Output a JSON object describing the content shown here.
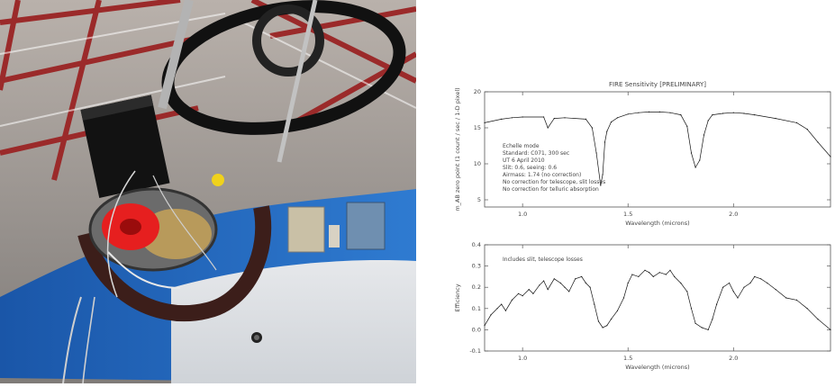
{
  "photo": {
    "subject": "Telescope instrument photo"
  },
  "chart_data": [
    {
      "type": "line",
      "title": "FIRE Sensitivity [PRELIMINARY]",
      "xlabel": "Wavelength (microns)",
      "ylabel": "m_AB zero point (1 count / sec / 1-D pixel)",
      "xlim": [
        0.82,
        2.46
      ],
      "ylim": [
        4,
        20
      ],
      "xticks": [
        "1.0",
        "1.5",
        "2.0"
      ],
      "yticks": [
        "5",
        "10",
        "15",
        "20"
      ],
      "annotations": [
        "Echelle mode",
        "Standard: C071, 300 sec",
        "UT 6 April 2010",
        "Slit: 0.6, seeing: 0.6",
        "Airmass: 1.74 (no correction)",
        "No correction for telescope, slit losses",
        "No correction for telluric absorption"
      ],
      "series": [
        {
          "x": [
            0.82,
            0.9,
            0.95,
            1.0,
            1.1,
            1.12,
            1.15,
            1.2,
            1.3,
            1.33,
            1.35,
            1.37,
            1.38,
            1.39,
            1.4,
            1.42,
            1.45,
            1.5,
            1.55,
            1.6,
            1.65,
            1.7,
            1.75,
            1.78,
            1.8,
            1.82,
            1.84,
            1.86,
            1.88,
            1.9,
            1.95,
            2.0,
            2.05,
            2.1,
            2.2,
            2.3,
            2.35,
            2.4,
            2.46
          ],
          "y": [
            15.7,
            16.2,
            16.4,
            16.5,
            16.5,
            15.0,
            16.3,
            16.4,
            16.2,
            15.0,
            11.5,
            7.0,
            8.5,
            13.0,
            14.5,
            15.8,
            16.4,
            16.9,
            17.1,
            17.2,
            17.2,
            17.1,
            16.8,
            15.2,
            11.5,
            9.5,
            10.5,
            14.0,
            16.0,
            16.8,
            17.0,
            17.1,
            17.0,
            16.8,
            16.3,
            15.7,
            14.8,
            13.0,
            11.0
          ]
        }
      ]
    },
    {
      "type": "line",
      "title": "",
      "xlabel": "Wavelength (microns)",
      "ylabel": "Efficiency",
      "xlim": [
        0.82,
        2.46
      ],
      "ylim": [
        -0.1,
        0.4
      ],
      "xticks": [
        "1.0",
        "1.5",
        "2.0"
      ],
      "yticks": [
        "-0.1",
        "0.0",
        "0.1",
        "0.2",
        "0.3",
        "0.4"
      ],
      "annotations": [
        "Includes slit, telescope losses"
      ],
      "series": [
        {
          "x": [
            0.82,
            0.85,
            0.88,
            0.9,
            0.92,
            0.95,
            0.98,
            1.0,
            1.03,
            1.05,
            1.08,
            1.1,
            1.12,
            1.15,
            1.18,
            1.2,
            1.22,
            1.25,
            1.28,
            1.3,
            1.32,
            1.34,
            1.36,
            1.38,
            1.4,
            1.42,
            1.45,
            1.48,
            1.5,
            1.52,
            1.55,
            1.58,
            1.6,
            1.62,
            1.65,
            1.68,
            1.7,
            1.72,
            1.75,
            1.78,
            1.8,
            1.82,
            1.85,
            1.88,
            1.9,
            1.92,
            1.95,
            1.98,
            2.0,
            2.02,
            2.05,
            2.08,
            2.1,
            2.13,
            2.16,
            2.2,
            2.25,
            2.3,
            2.35,
            2.4,
            2.46
          ],
          "y": [
            0.02,
            0.07,
            0.1,
            0.12,
            0.09,
            0.14,
            0.17,
            0.16,
            0.19,
            0.17,
            0.21,
            0.23,
            0.19,
            0.24,
            0.22,
            0.2,
            0.18,
            0.24,
            0.25,
            0.22,
            0.2,
            0.12,
            0.04,
            0.01,
            0.02,
            0.05,
            0.09,
            0.15,
            0.22,
            0.26,
            0.25,
            0.28,
            0.27,
            0.25,
            0.27,
            0.26,
            0.28,
            0.25,
            0.22,
            0.18,
            0.1,
            0.03,
            0.01,
            0.0,
            0.05,
            0.12,
            0.2,
            0.22,
            0.18,
            0.15,
            0.2,
            0.22,
            0.25,
            0.24,
            0.22,
            0.19,
            0.15,
            0.14,
            0.1,
            0.05,
            0.0
          ]
        }
      ]
    }
  ]
}
